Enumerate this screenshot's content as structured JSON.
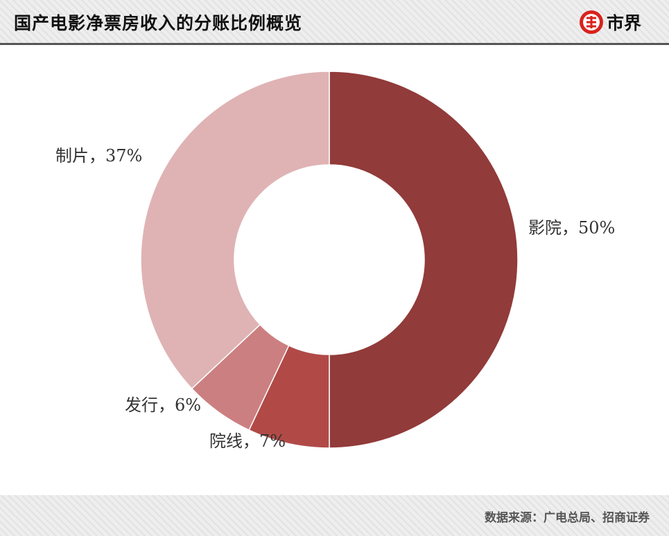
{
  "header": {
    "title": "国产电影净票房收入的分账比例概览",
    "brand_name": "市界"
  },
  "colors": {
    "accent_red": "#d9221c",
    "slice_cinema": "#913b3a",
    "slice_chain": "#b14a47",
    "slice_distribution": "#cc7f80",
    "slice_production": "#dfb3b4"
  },
  "chart_data": {
    "type": "pie",
    "donut": true,
    "title": "",
    "slices": [
      {
        "label": "影院",
        "value": 50,
        "display": "影院，50%",
        "color": "#913b3a"
      },
      {
        "label": "院线",
        "value": 7,
        "display": "院线，7%",
        "color": "#b14a47"
      },
      {
        "label": "发行",
        "value": 6,
        "display": "发行，6%",
        "color": "#cc7f80"
      },
      {
        "label": "制片",
        "value": 37,
        "display": "制片，37%",
        "color": "#dfb3b4"
      }
    ]
  },
  "footer": {
    "source": "数据来源：广电总局、招商证券"
  }
}
